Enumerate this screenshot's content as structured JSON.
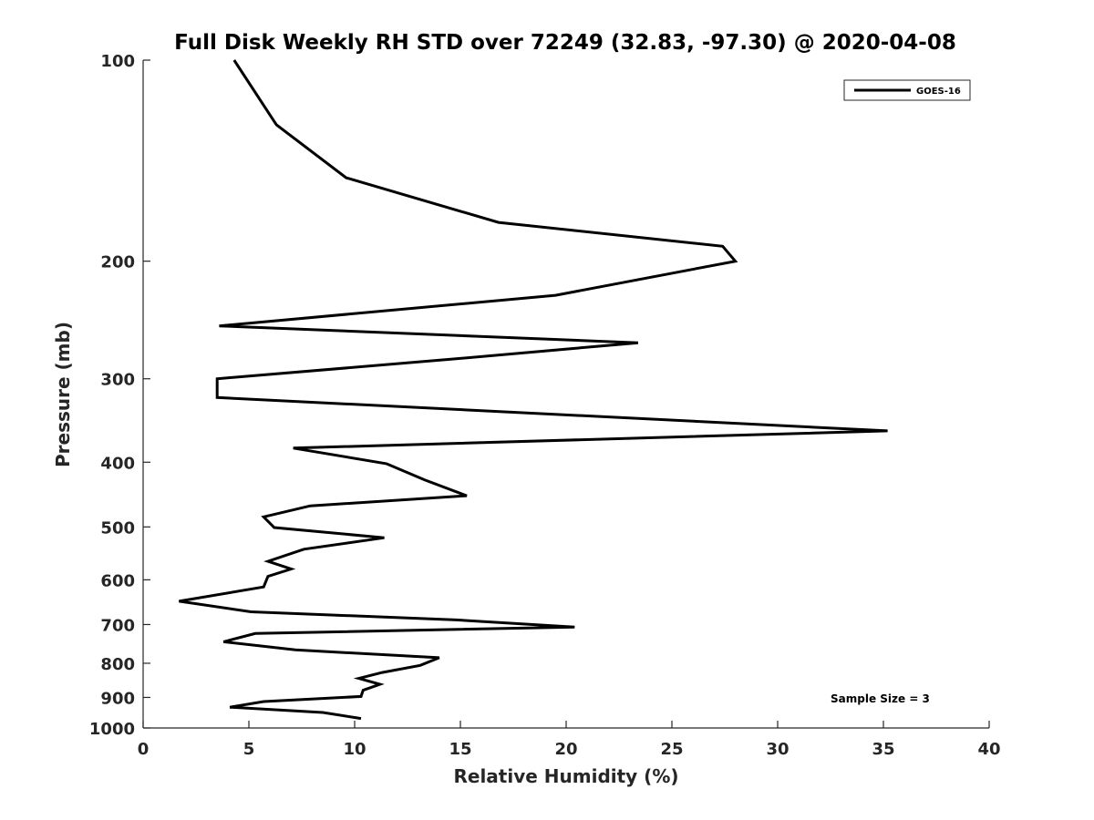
{
  "chart_data": {
    "type": "line",
    "title": "Full Disk Weekly RH STD over 72249 (32.83, -97.30) @ 2020-04-08",
    "xlabel": "Relative Humidity (%)",
    "ylabel": "Pressure (mb)",
    "xlim": [
      0,
      40
    ],
    "ylim": [
      100,
      1000
    ],
    "yscale": "log",
    "y_reversed": true,
    "x_ticks": [
      0,
      5,
      10,
      15,
      20,
      25,
      30,
      35,
      40
    ],
    "x_tick_labels": [
      "0",
      "5",
      "10",
      "15",
      "20",
      "25",
      "30",
      "35",
      "40"
    ],
    "y_ticks": [
      100,
      200,
      300,
      400,
      500,
      600,
      700,
      800,
      900,
      1000
    ],
    "y_tick_labels": [
      "100",
      "200",
      "300",
      "400",
      "500",
      "600",
      "700",
      "800",
      "900",
      "1000"
    ],
    "legend": {
      "position": "top-right",
      "entries": [
        "GOES-16"
      ]
    },
    "annotation": "Sample Size = 3",
    "series": [
      {
        "name": "GOES-16",
        "color": "#000000",
        "points": [
          [
            4.3,
            100
          ],
          [
            6.3,
            125
          ],
          [
            9.6,
            150
          ],
          [
            16.8,
            175
          ],
          [
            27.4,
            190
          ],
          [
            28.0,
            200
          ],
          [
            19.5,
            225
          ],
          [
            3.6,
            250
          ],
          [
            23.4,
            265
          ],
          [
            14.8,
            280
          ],
          [
            3.5,
            300
          ],
          [
            3.5,
            320
          ],
          [
            35.2,
            359
          ],
          [
            7.1,
            381
          ],
          [
            11.5,
            402
          ],
          [
            13.3,
            425
          ],
          [
            15.3,
            449
          ],
          [
            7.9,
            465
          ],
          [
            5.7,
            483
          ],
          [
            6.2,
            501
          ],
          [
            11.4,
            519
          ],
          [
            7.6,
            540
          ],
          [
            5.9,
            563
          ],
          [
            7.0,
            578
          ],
          [
            5.9,
            593
          ],
          [
            5.7,
            615
          ],
          [
            1.7,
            646
          ],
          [
            5.1,
            670
          ],
          [
            14.8,
            689
          ],
          [
            20.4,
            706
          ],
          [
            5.3,
            722
          ],
          [
            3.8,
            743
          ],
          [
            7.2,
            764
          ],
          [
            14.0,
            785
          ],
          [
            13.1,
            806
          ],
          [
            11.3,
            826
          ],
          [
            10.2,
            843
          ],
          [
            11.2,
            860
          ],
          [
            10.4,
            878
          ],
          [
            10.3,
            897
          ],
          [
            5.7,
            913
          ],
          [
            4.1,
            931
          ],
          [
            8.5,
            948
          ],
          [
            10.3,
            968
          ]
        ]
      }
    ]
  }
}
